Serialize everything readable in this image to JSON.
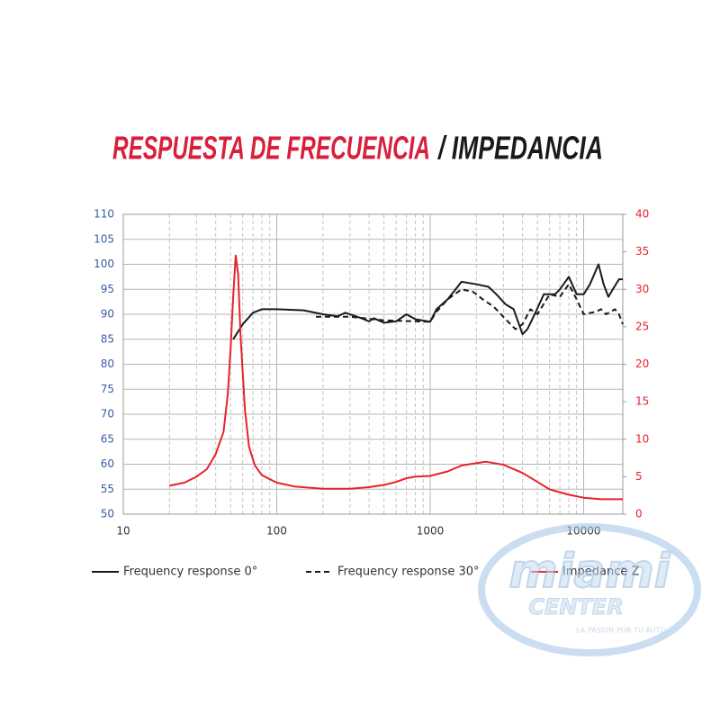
{
  "chart_data": {
    "type": "line",
    "title_part1": "RESPUESTA DE FRECUENCIA",
    "title_part2": "/ IMPEDANCIA",
    "xlog": true,
    "xlim": [
      10,
      18000
    ],
    "xticks": [
      10,
      100,
      1000,
      10000
    ],
    "xminor_ticks": [
      20,
      30,
      40,
      50,
      60,
      70,
      80,
      90,
      200,
      300,
      400,
      500,
      600,
      700,
      800,
      900,
      2000,
      3000,
      4000,
      5000,
      6000,
      7000,
      8000,
      9000
    ],
    "ylim": [
      50,
      110
    ],
    "yticks": [
      50,
      55,
      60,
      65,
      70,
      75,
      80,
      85,
      90,
      95,
      100,
      105,
      110
    ],
    "y2lim": [
      0,
      40
    ],
    "y2ticks": [
      0,
      5,
      10,
      15,
      20,
      25,
      30,
      35,
      40
    ],
    "grid": true,
    "legend": "bottom",
    "series": [
      {
        "name": "Frequency response 0°",
        "color": "#1a1a1a",
        "dash": false,
        "x": [
          52,
          60,
          70,
          80,
          100,
          150,
          200,
          250,
          280,
          350,
          400,
          430,
          500,
          600,
          700,
          800,
          1000,
          1100,
          1300,
          1600,
          2000,
          2400,
          2700,
          3100,
          3500,
          4000,
          4300,
          4800,
          5500,
          6500,
          7000,
          8000,
          9000,
          10000,
          11000,
          12500,
          13500,
          14500,
          15500,
          17000,
          18000
        ],
        "values": [
          85,
          88,
          90.3,
          91,
          91,
          90.8,
          90,
          89.6,
          90.3,
          89.3,
          88.6,
          89.2,
          88.3,
          88.6,
          90,
          89,
          88.5,
          91,
          93,
          96.5,
          96,
          95.5,
          94,
          92,
          91,
          86,
          87,
          90,
          94,
          94,
          95,
          97.5,
          94,
          94,
          96,
          100,
          96,
          93.5,
          95,
          97,
          97
        ]
      },
      {
        "name": "Frequency response 30°",
        "color": "#1a1a1a",
        "dash": true,
        "x": [
          180,
          300,
          500,
          1000,
          1100,
          1300,
          1600,
          1900,
          2200,
          2600,
          3100,
          3600,
          4000,
          4500,
          5000,
          6000,
          7000,
          8000,
          9000,
          10000,
          12000,
          13000,
          14000,
          15000,
          16000,
          17000,
          18000
        ],
        "values": [
          89.5,
          89.5,
          88.8,
          88.5,
          90.5,
          93,
          95,
          94.5,
          93,
          91.5,
          89,
          87,
          88,
          91,
          90,
          94,
          93.5,
          96,
          93,
          90,
          90.5,
          91,
          90,
          90.5,
          91,
          90,
          88
        ]
      },
      {
        "name": "Impedance Z",
        "color": "#e8212b",
        "dash": false,
        "axis": "y2",
        "x": [
          20,
          25,
          30,
          35,
          40,
          45,
          48,
          50,
          52,
          54,
          56,
          58,
          62,
          66,
          72,
          80,
          100,
          130,
          200,
          300,
          400,
          500,
          600,
          700,
          800,
          1000,
          1300,
          1600,
          2000,
          2300,
          3000,
          4000,
          5000,
          6000,
          8000,
          10000,
          13000,
          18000
        ],
        "values": [
          3.8,
          4.2,
          5,
          6,
          8,
          11,
          16,
          22,
          29,
          34.5,
          32,
          24,
          14,
          9,
          6.5,
          5.2,
          4.2,
          3.7,
          3.4,
          3.4,
          3.6,
          3.9,
          4.3,
          4.8,
          5,
          5.1,
          5.7,
          6.5,
          6.8,
          7,
          6.6,
          5.5,
          4.3,
          3.3,
          2.6,
          2.2,
          2,
          2
        ]
      }
    ]
  },
  "watermark": {
    "brand": "miami",
    "sub": "CENTER",
    "tagline": "LA PASION POR TU AUTO"
  }
}
